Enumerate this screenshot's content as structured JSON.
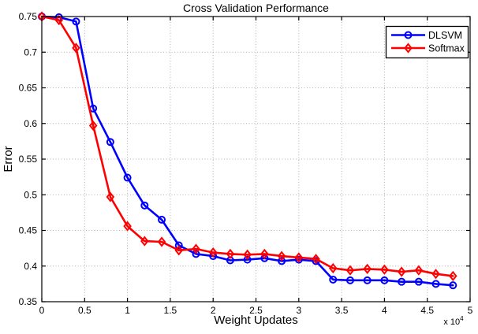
{
  "figure": {
    "title": "Cross Validation Performance",
    "xlabel": "Weight Updates",
    "ylabel": "Error",
    "x_scale_label": "x 10",
    "x_scale_exponent": "4"
  },
  "legend": {
    "position": "top-right",
    "items": [
      {
        "label": "DLSVM",
        "color": "#0000ff",
        "marker": "circle-icon"
      },
      {
        "label": "Softmax",
        "color": "#ff0000",
        "marker": "diamond-icon"
      }
    ]
  },
  "colors": {
    "axis": "#000000",
    "grid": "#b0b0b0",
    "background": "#ffffff",
    "dlsvm": "#0000ff",
    "softmax": "#ff0000"
  },
  "chart_data": {
    "type": "line",
    "title": "Cross Validation Performance",
    "xlabel": "Weight Updates",
    "ylabel": "Error",
    "x_unit": "x 10^4",
    "xlim": [
      0,
      5
    ],
    "ylim": [
      0.35,
      0.75
    ],
    "xticks": [
      "0",
      "0.5",
      "1",
      "1.5",
      "2",
      "2.5",
      "3",
      "3.5",
      "4",
      "4.5",
      "5"
    ],
    "xtick_values": [
      0,
      0.5,
      1,
      1.5,
      2,
      2.5,
      3,
      3.5,
      4,
      4.5,
      5
    ],
    "yticks": [
      "0.35",
      "0.4",
      "0.45",
      "0.5",
      "0.55",
      "0.6",
      "0.65",
      "0.7",
      "0.75"
    ],
    "ytick_values": [
      0.35,
      0.4,
      0.45,
      0.5,
      0.55,
      0.6,
      0.65,
      0.7,
      0.75
    ],
    "grid": true,
    "legend_position": "top-right",
    "x": [
      0,
      0.2,
      0.4,
      0.6,
      0.8,
      1.0,
      1.2,
      1.4,
      1.6,
      1.8,
      2.0,
      2.2,
      2.4,
      2.6,
      2.8,
      3.0,
      3.2,
      3.4,
      3.6,
      3.8,
      4.0,
      4.2,
      4.4,
      4.6,
      4.8
    ],
    "series": [
      {
        "name": "DLSVM",
        "color": "#0000ff",
        "marker": "circle",
        "values": [
          0.75,
          0.749,
          0.743,
          0.621,
          0.574,
          0.524,
          0.485,
          0.465,
          0.429,
          0.417,
          0.414,
          0.408,
          0.409,
          0.411,
          0.407,
          0.409,
          0.407,
          0.381,
          0.38,
          0.38,
          0.38,
          0.378,
          0.378,
          0.375,
          0.373
        ]
      },
      {
        "name": "Softmax",
        "color": "#ff0000",
        "marker": "diamond",
        "values": [
          0.75,
          0.745,
          0.706,
          0.597,
          0.497,
          0.456,
          0.435,
          0.434,
          0.422,
          0.424,
          0.419,
          0.417,
          0.416,
          0.417,
          0.414,
          0.412,
          0.41,
          0.397,
          0.394,
          0.396,
          0.395,
          0.392,
          0.394,
          0.389,
          0.386
        ]
      }
    ]
  }
}
